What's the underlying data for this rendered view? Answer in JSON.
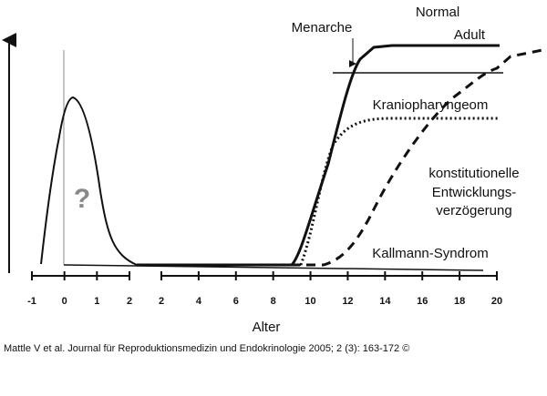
{
  "labels": {
    "normal": "Normal",
    "adult": "Adult",
    "menarche": "Menarche",
    "kranio": "Kraniopharyngeom",
    "konst": [
      "konstitutionelle",
      "Entwicklungs-",
      "verzögerung"
    ],
    "kallmann": "Kallmann-Syndrom",
    "unknown": "?"
  },
  "axis_left": {
    "ticks": [
      -1,
      0,
      1,
      2
    ]
  },
  "axis_right": {
    "ticks": [
      2,
      4,
      6,
      8,
      10,
      12,
      14,
      16,
      18,
      20
    ]
  },
  "x_label": "Alter",
  "caption": "Mattle V et al. Journal für Reproduktionsmedizin und Endokrinologie 2005; 2 (3): 163-172 ©"
}
